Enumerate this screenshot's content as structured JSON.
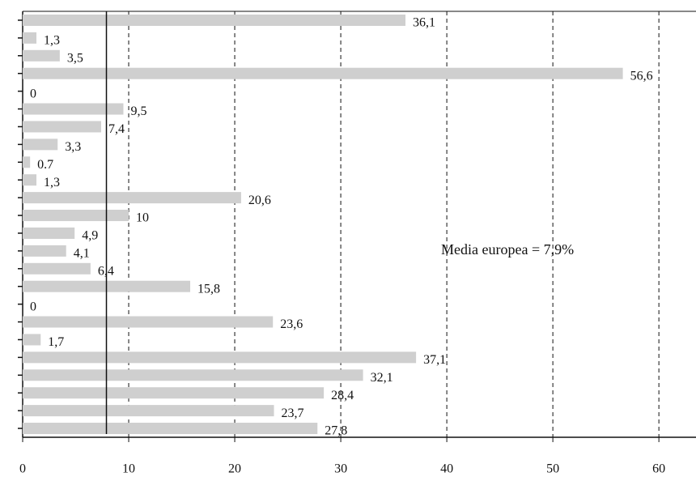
{
  "chart_data": {
    "type": "hbar",
    "categories": [
      null,
      null,
      null,
      null,
      null,
      null,
      null,
      null,
      null,
      null,
      null,
      null,
      null,
      null,
      null,
      null,
      null,
      null,
      null,
      null,
      null,
      null,
      null,
      null
    ],
    "values": [
      36.1,
      1.3,
      3.5,
      56.6,
      0,
      9.5,
      7.4,
      3.3,
      0.7,
      1.3,
      20.6,
      10,
      4.9,
      4.1,
      6.4,
      15.8,
      0,
      23.6,
      1.7,
      37.1,
      32.1,
      28.4,
      23.7,
      27.8
    ],
    "value_labels": [
      "36,1",
      "1,3",
      "3,5",
      "56,6",
      "0",
      "9,5",
      "7,4",
      "3,3",
      "0.7",
      "1,3",
      "20,6",
      "10",
      "4,9",
      "4,1",
      "6,4",
      "15,8",
      "0",
      "23,6",
      "1,7",
      "37,1",
      "32,1",
      "28,4",
      "23,7",
      "27,8"
    ],
    "color": "#cfcfcf",
    "xlim": [
      0,
      63.5
    ],
    "xticks": [
      0,
      10,
      20,
      30,
      40,
      50,
      60
    ],
    "grid": true,
    "reference_line": {
      "value": 7.9,
      "label": "Media europea = 7,9%"
    }
  }
}
